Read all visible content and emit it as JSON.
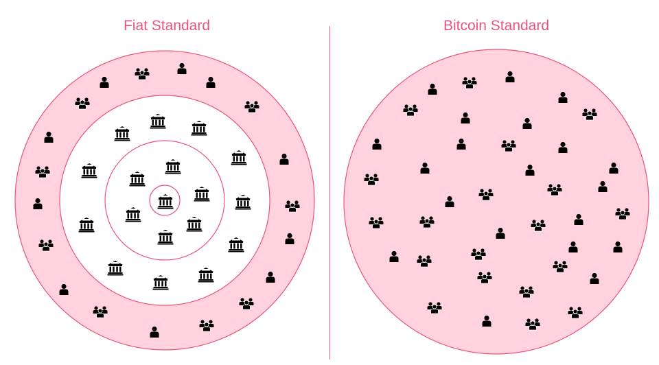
{
  "titles": {
    "left": "Fiat Standard",
    "right": "Bitcoin Standard"
  },
  "colors": {
    "accent": "#e8557c",
    "fill": "#ffd2de",
    "icon": "#000000"
  },
  "icons": [
    "person-icon",
    "group-icon",
    "bank-icon"
  ]
}
